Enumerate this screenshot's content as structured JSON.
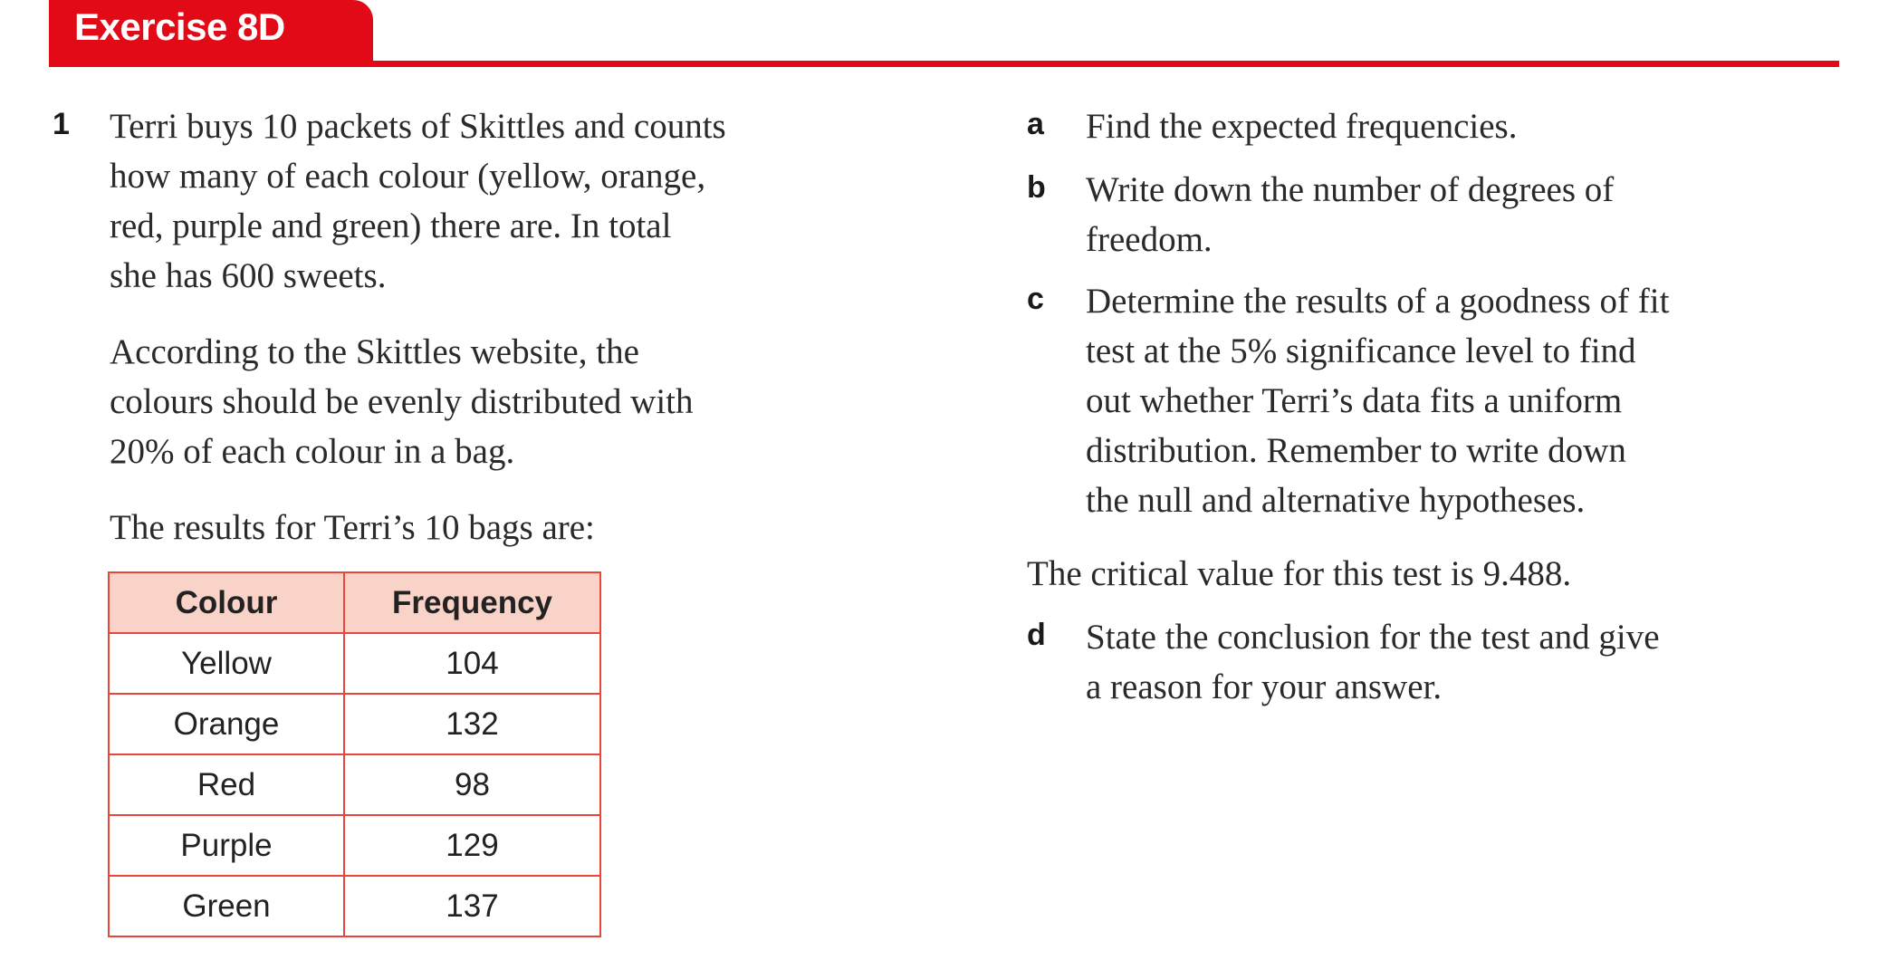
{
  "header": {
    "title": "Exercise 8D"
  },
  "question": {
    "number": "1",
    "intro_lines": [
      "Terri buys 10 packets of Skittles and counts",
      "how many of each colour (yellow, orange,",
      "red, purple and green) there are. In total",
      "she has 600 sweets."
    ],
    "para2_lines": [
      "According to the Skittles website, the",
      "colours should be evenly distributed with",
      "20% of each colour in a bag."
    ],
    "results_intro": "The results for Terri’s 10 bags are:",
    "table": {
      "headers": [
        "Colour",
        "Frequency"
      ],
      "rows": [
        [
          "Yellow",
          "104"
        ],
        [
          "Orange",
          "132"
        ],
        [
          "Red",
          "98"
        ],
        [
          "Purple",
          "129"
        ],
        [
          "Green",
          "137"
        ]
      ]
    },
    "parts": [
      {
        "label": "a",
        "lines": [
          "Find the expected frequencies."
        ]
      },
      {
        "label": "b",
        "lines": [
          "Write down the number of degrees of",
          "freedom."
        ]
      },
      {
        "label": "c",
        "lines": [
          "Determine the results of a goodness of fit",
          "test at the 5% significance level to find",
          "out whether Terri’s data fits a uniform",
          "distribution. Remember to write down",
          "the null and alternative hypotheses."
        ]
      },
      {
        "label": "d",
        "lines": [
          "State the conclusion for the test and give",
          "a reason for your answer."
        ]
      }
    ],
    "critical_value_text": "The critical value for this test is 9.488."
  },
  "colors": {
    "accent": "#e20a16",
    "table_header_bg": "#f9d3c8",
    "table_border": "#e8453c"
  }
}
